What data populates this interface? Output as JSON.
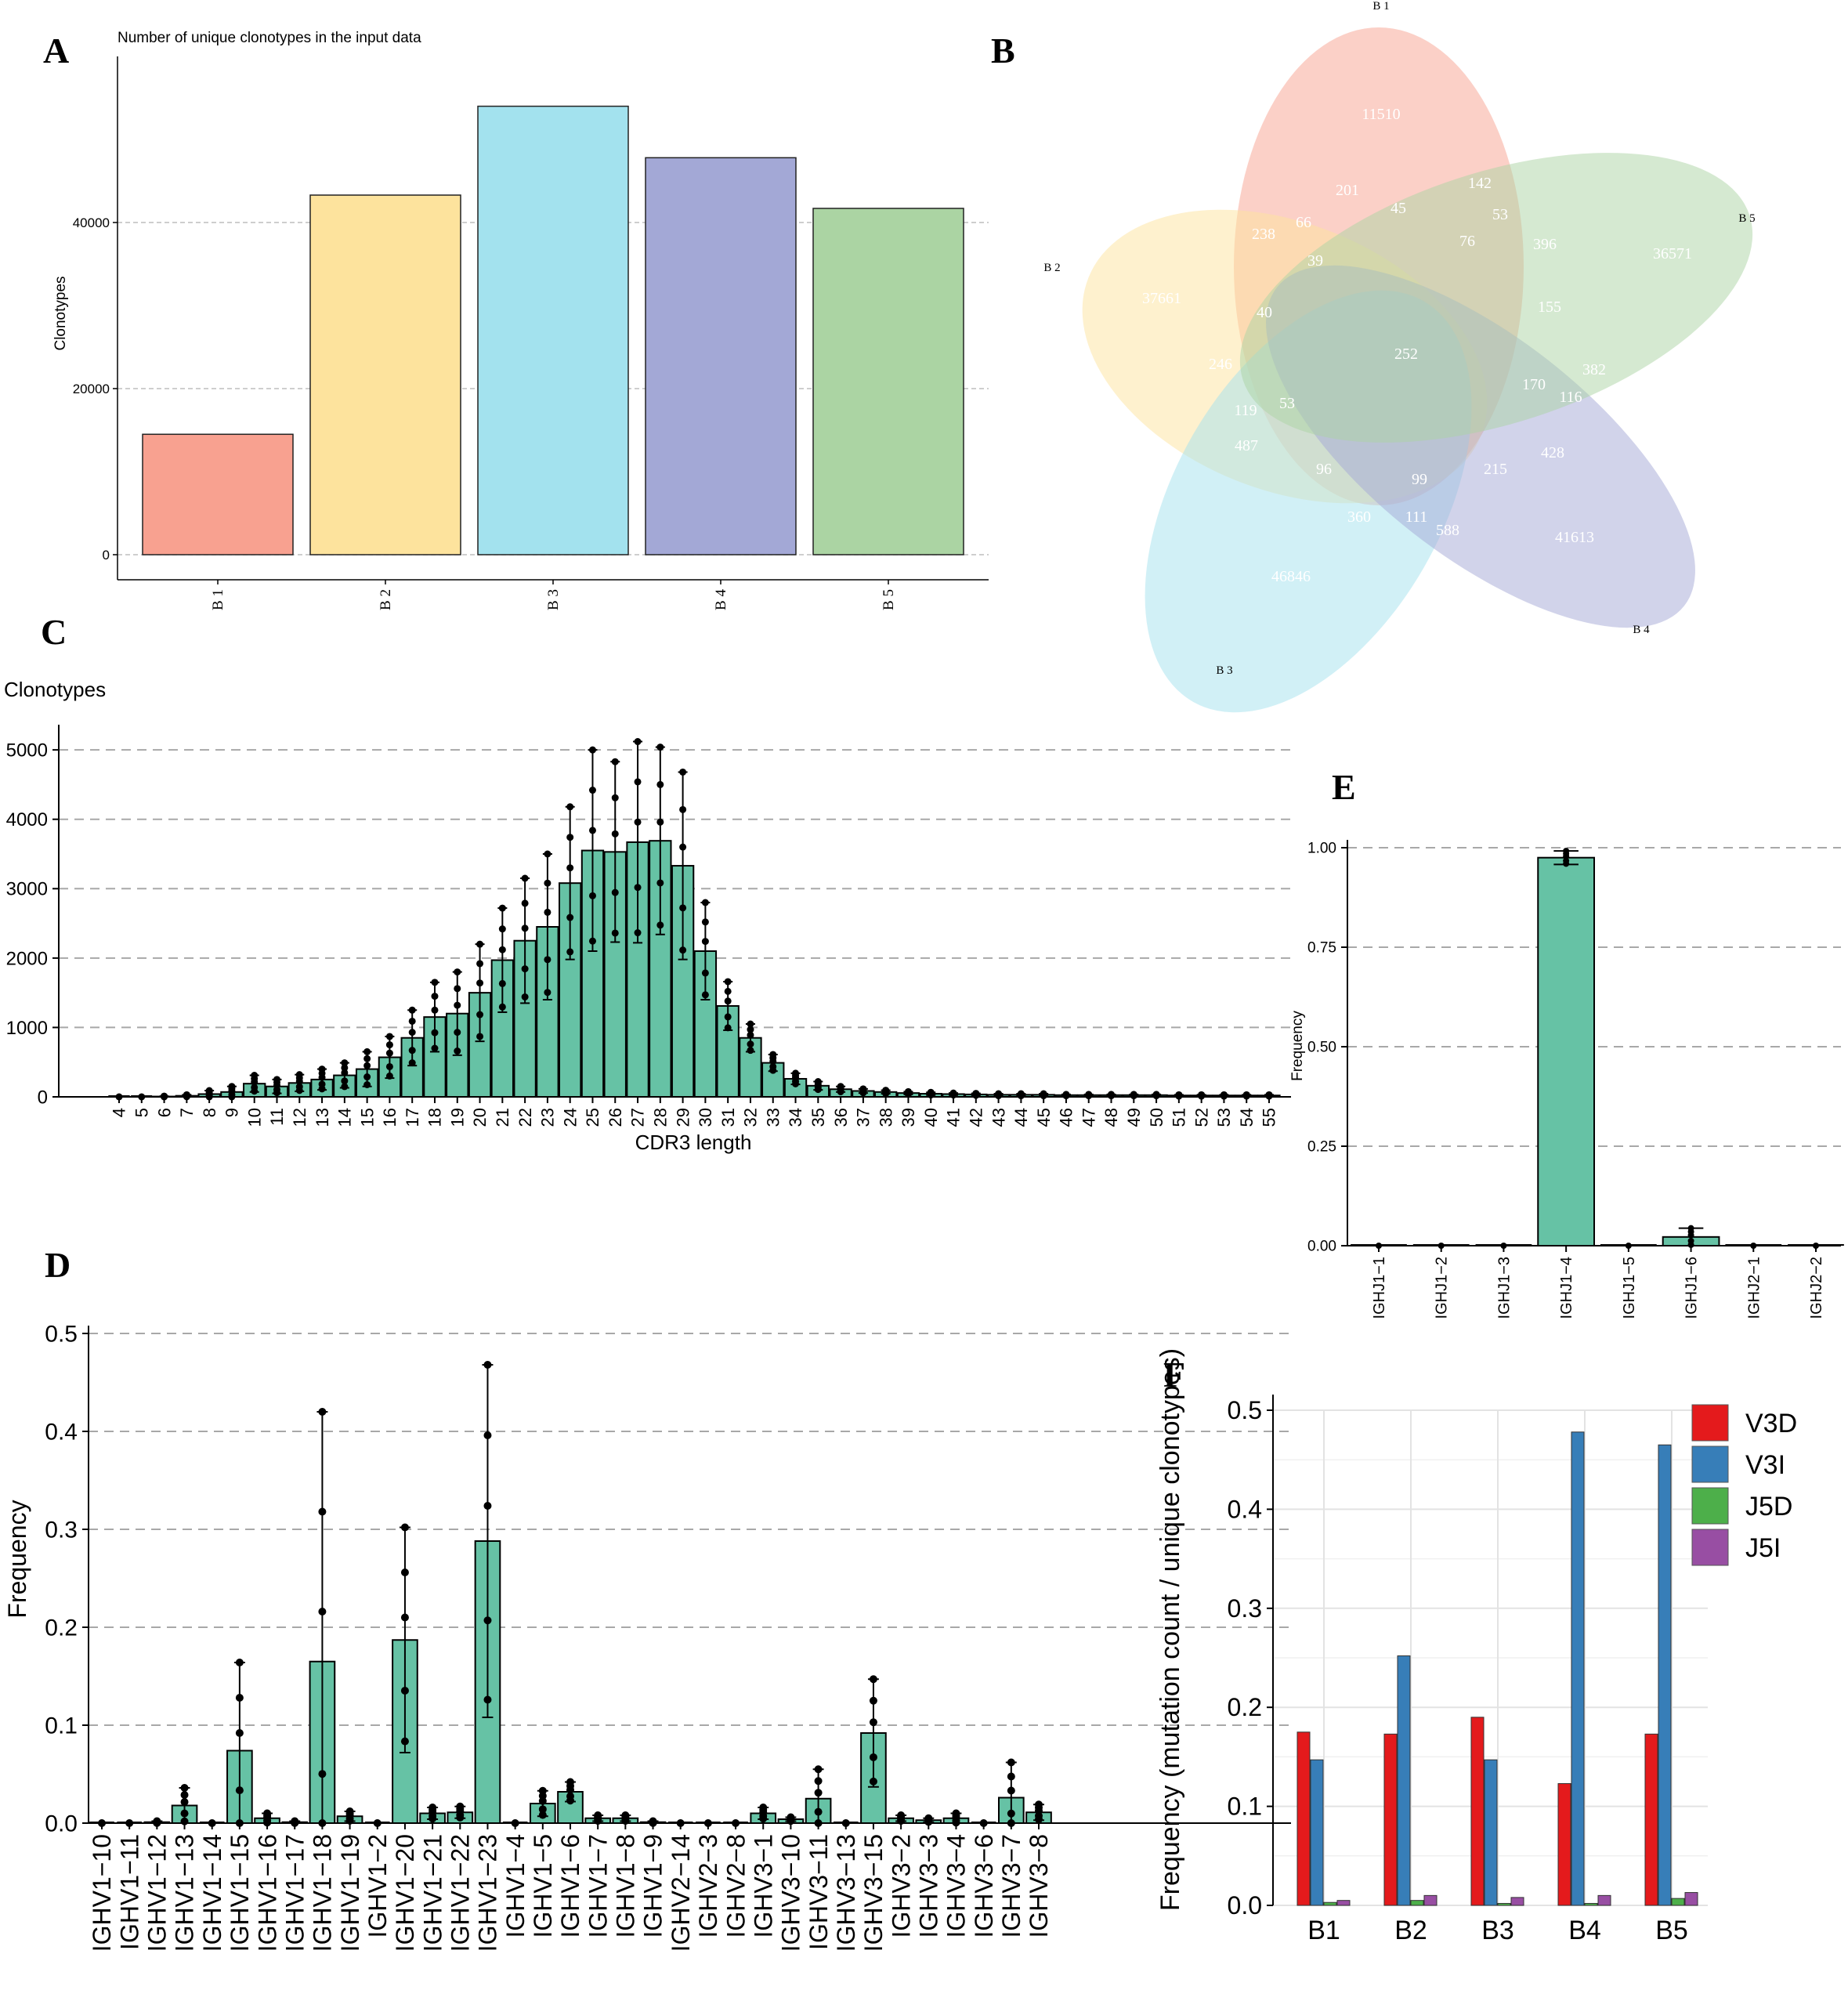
{
  "chart_data": [
    {
      "panel": "A",
      "type": "bar",
      "title": "Number of unique clonotypes in the input data",
      "xlabel": "",
      "ylabel": "Clonotypes",
      "categories": [
        "B 1",
        "B 2",
        "B 3",
        "B 4",
        "B 5"
      ],
      "values": [
        14500,
        43300,
        54000,
        47800,
        41700
      ],
      "colors": [
        "#f8a190",
        "#fde39d",
        "#a3e2ee",
        "#a3a8d6",
        "#abd4a3"
      ],
      "yticks": [
        0,
        20000,
        40000
      ],
      "ylim": [
        0,
        60000
      ]
    },
    {
      "panel": "B",
      "type": "venn",
      "sets": [
        {
          "name": "B 1",
          "color": "#f8a190"
        },
        {
          "name": "B 2",
          "color": "#fde39d"
        },
        {
          "name": "B 3",
          "color": "#a3e2ee"
        },
        {
          "name": "B 4",
          "color": "#a3a8d6"
        },
        {
          "name": "B 5",
          "color": "#abd4a3"
        }
      ],
      "region_counts": [
        "11510",
        "37661",
        "46846",
        "41613",
        "36571",
        "201",
        "142",
        "45",
        "53",
        "66",
        "238",
        "76",
        "396",
        "39",
        "155",
        "40",
        "252",
        "382",
        "246",
        "170",
        "116",
        "53",
        "119",
        "487",
        "428",
        "96",
        "99",
        "215",
        "360",
        "111",
        "588"
      ]
    },
    {
      "panel": "C",
      "type": "bar",
      "xlabel": "CDR3 length",
      "ylabel": "Clonotypes",
      "categories": [
        "4",
        "5",
        "6",
        "7",
        "8",
        "9",
        "10",
        "11",
        "12",
        "13",
        "14",
        "15",
        "16",
        "17",
        "18",
        "19",
        "20",
        "21",
        "22",
        "23",
        "24",
        "25",
        "26",
        "27",
        "28",
        "29",
        "30",
        "31",
        "32",
        "33",
        "34",
        "35",
        "36",
        "37",
        "38",
        "39",
        "40",
        "41",
        "42",
        "43",
        "44",
        "45",
        "46",
        "47",
        "48",
        "49",
        "50",
        "51",
        "52",
        "53",
        "54",
        "55"
      ],
      "values": [
        0,
        0,
        5,
        15,
        40,
        70,
        190,
        150,
        200,
        250,
        310,
        400,
        570,
        850,
        1150,
        1200,
        1500,
        1970,
        2250,
        2450,
        3080,
        3550,
        3530,
        3670,
        3690,
        3330,
        2100,
        1310,
        850,
        490,
        260,
        160,
        110,
        85,
        70,
        55,
        45,
        40,
        35,
        30,
        30,
        30,
        25,
        25,
        25,
        25,
        25,
        20,
        20,
        20,
        20,
        20
      ],
      "errors": [
        0,
        0,
        5,
        15,
        50,
        80,
        120,
        100,
        120,
        150,
        180,
        250,
        300,
        400,
        500,
        600,
        700,
        750,
        900,
        1050,
        1100,
        1450,
        1300,
        1450,
        1350,
        1350,
        700,
        350,
        200,
        120,
        80,
        60,
        40,
        30,
        25,
        20,
        20,
        15,
        15,
        15,
        15,
        15,
        10,
        10,
        10,
        10,
        10,
        10,
        10,
        10,
        10,
        10
      ],
      "yticks": [
        0,
        1000,
        2000,
        3000,
        4000,
        5000
      ],
      "ylim": [
        0,
        5250
      ],
      "bar_color": "#66c2a5"
    },
    {
      "panel": "D",
      "type": "bar",
      "xlabel": "",
      "ylabel": "Frequency",
      "categories": [
        "IGHV1−10",
        "IGHV1−11",
        "IGHV1−12",
        "IGHV1−13",
        "IGHV1−14",
        "IGHV1−15",
        "IGHV1−16",
        "IGHV1−17",
        "IGHV1−18",
        "IGHV1−19",
        "IGHV1−2",
        "IGHV1−20",
        "IGHV1−21",
        "IGHV1−22",
        "IGHV1−23",
        "IGHV1−4",
        "IGHV1−5",
        "IGHV1−6",
        "IGHV1−7",
        "IGHV1−8",
        "IGHV1−9",
        "IGHV2−14",
        "IGHV2−3",
        "IGHV2−8",
        "IGHV3−1",
        "IGHV3−10",
        "IGHV3−11",
        "IGHV3−13",
        "IGHV3−15",
        "IGHV3−2",
        "IGHV3−3",
        "IGHV3−4",
        "IGHV3−6",
        "IGHV3−7",
        "IGHV3−8"
      ],
      "values": [
        0,
        0,
        0.001,
        0.018,
        0,
        0.074,
        0.005,
        0.001,
        0.165,
        0.007,
        0,
        0.187,
        0.01,
        0.011,
        0.288,
        0,
        0.02,
        0.032,
        0.005,
        0.005,
        0.001,
        0,
        0,
        0,
        0.01,
        0.004,
        0.025,
        0,
        0.092,
        0.005,
        0.003,
        0.005,
        0,
        0.026,
        0.011
      ],
      "errors": [
        0,
        0,
        0.001,
        0.018,
        0,
        0.09,
        0.005,
        0.001,
        0.255,
        0.005,
        0,
        0.115,
        0.006,
        0.006,
        0.18,
        0,
        0.013,
        0.01,
        0.003,
        0.003,
        0.001,
        0,
        0,
        0,
        0.006,
        0.002,
        0.03,
        0,
        0.055,
        0.003,
        0.002,
        0.005,
        0,
        0.036,
        0.008
      ],
      "yticks": [
        0,
        0.1,
        0.2,
        0.3,
        0.4,
        0.5
      ],
      "ylim": [
        0,
        0.5
      ],
      "bar_color": "#66c2a5"
    },
    {
      "panel": "E",
      "type": "bar",
      "xlabel": "",
      "ylabel": "Frequency",
      "categories": [
        "IGHJ1−1",
        "IGHJ1−2",
        "IGHJ1−3",
        "IGHJ1−4",
        "IGHJ1−5",
        "IGHJ1−6",
        "IGHJ2−1",
        "IGHJ2−2"
      ],
      "values": [
        0,
        0,
        0,
        0.975,
        0,
        0.022,
        0,
        0
      ],
      "errors": [
        0,
        0,
        0,
        0.017,
        0,
        0.022,
        0,
        0
      ],
      "yticks": [
        0.0,
        0.25,
        0.5,
        0.75,
        1.0
      ],
      "ylim": [
        0,
        1.0
      ],
      "bar_color": "#66c2a5"
    },
    {
      "panel": "F",
      "type": "bar",
      "xlabel": "",
      "ylabel": "Frequency (mutation count / unique clonotypes)",
      "categories": [
        "B1",
        "B2",
        "B3",
        "B4",
        "B5"
      ],
      "series": [
        {
          "name": "V3D",
          "color": "#e41a1c",
          "values": [
            0.175,
            0.173,
            0.19,
            0.123,
            0.173
          ]
        },
        {
          "name": "V3I",
          "color": "#377eb8",
          "values": [
            0.147,
            0.252,
            0.147,
            0.478,
            0.465
          ]
        },
        {
          "name": "J5D",
          "color": "#4daf4a",
          "values": [
            0.003,
            0.005,
            0.002,
            0.002,
            0.007
          ]
        },
        {
          "name": "J5I",
          "color": "#984ea3",
          "values": [
            0.005,
            0.01,
            0.008,
            0.01,
            0.013
          ]
        }
      ],
      "yticks": [
        0.0,
        0.1,
        0.2,
        0.3,
        0.4,
        0.5
      ],
      "ylim": [
        0,
        0.5
      ]
    }
  ]
}
